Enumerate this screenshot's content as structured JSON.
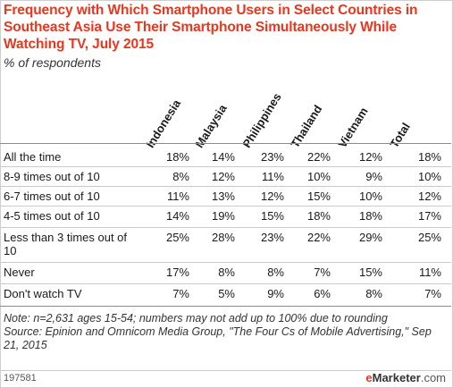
{
  "title": "Frequency with Which Smartphone Users in Select Countries in Southeast Asia Use Their Smartphone Simultaneously While Watching TV, July 2015",
  "subtitle": "% of respondents",
  "columns": [
    "Indonesia",
    "Malaysia",
    "Philippines",
    "Thailand",
    "Vietnam",
    "Total"
  ],
  "rows": [
    {
      "label": "All the time",
      "values": [
        "18%",
        "14%",
        "23%",
        "22%",
        "12%",
        "18%"
      ]
    },
    {
      "label": "8-9 times out of 10",
      "values": [
        "8%",
        "12%",
        "11%",
        "10%",
        "9%",
        "10%"
      ]
    },
    {
      "label": "6-7 times out of 10",
      "values": [
        "11%",
        "13%",
        "12%",
        "15%",
        "10%",
        "12%"
      ]
    },
    {
      "label": "4-5 times out of 10",
      "values": [
        "14%",
        "19%",
        "15%",
        "18%",
        "18%",
        "17%"
      ]
    },
    {
      "label": "Less than 3 times out of 10",
      "values": [
        "25%",
        "28%",
        "23%",
        "22%",
        "29%",
        "25%"
      ]
    },
    {
      "label": "Never",
      "values": [
        "17%",
        "8%",
        "8%",
        "7%",
        "15%",
        "11%"
      ]
    },
    {
      "label": "Don't watch TV",
      "values": [
        "7%",
        "5%",
        "9%",
        "6%",
        "8%",
        "7%"
      ]
    }
  ],
  "note": "Note: n=2,631 ages 15-54; numbers may not add up to 100% due to rounding",
  "source": "Source: Epinion and Omnicom Media Group, \"The Four Cs of Mobile Advertising,\" Sep 21, 2015",
  "chart_id": "197581",
  "brand": {
    "e": "e",
    "rest": "Marketer",
    "suffix": ".com"
  },
  "chart_data": {
    "type": "table",
    "title": "Frequency with Which Smartphone Users in Select Countries in Southeast Asia Use Their Smartphone Simultaneously While Watching TV, July 2015",
    "subtitle": "% of respondents",
    "columns": [
      "Indonesia",
      "Malaysia",
      "Philippines",
      "Thailand",
      "Vietnam",
      "Total"
    ],
    "categories": [
      "All the time",
      "8-9 times out of 10",
      "6-7 times out of 10",
      "4-5 times out of 10",
      "Less than 3 times out of 10",
      "Never",
      "Don't watch TV"
    ],
    "series": [
      {
        "name": "Indonesia",
        "values": [
          18,
          8,
          11,
          14,
          25,
          17,
          7
        ]
      },
      {
        "name": "Malaysia",
        "values": [
          14,
          12,
          13,
          19,
          28,
          8,
          5
        ]
      },
      {
        "name": "Philippines",
        "values": [
          23,
          11,
          12,
          15,
          23,
          8,
          9
        ]
      },
      {
        "name": "Thailand",
        "values": [
          22,
          10,
          15,
          18,
          22,
          7,
          6
        ]
      },
      {
        "name": "Vietnam",
        "values": [
          12,
          9,
          10,
          18,
          29,
          15,
          8
        ]
      },
      {
        "name": "Total",
        "values": [
          18,
          10,
          12,
          17,
          25,
          11,
          7
        ]
      }
    ]
  }
}
